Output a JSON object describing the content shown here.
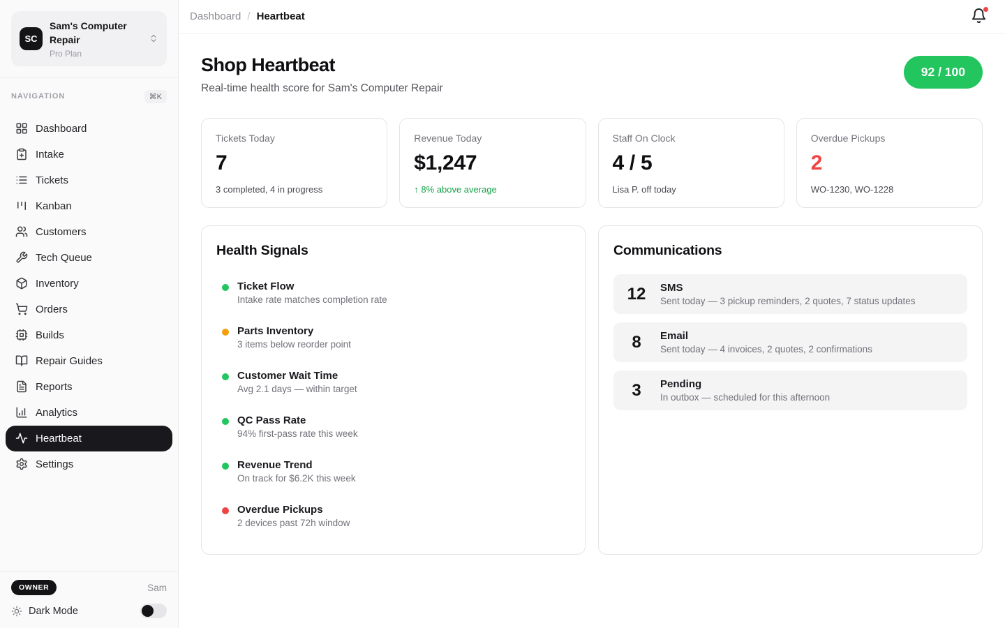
{
  "colors": {
    "green": "#22c55e",
    "green-text": "#16a34a",
    "amber": "#f59e0b",
    "red": "#ef4444",
    "border": "#e4e4e7",
    "row-bg": "#f4f4f5"
  },
  "sidebar": {
    "org": {
      "initials": "SC",
      "name": "Sam's Computer Repair",
      "plan": "Pro Plan"
    },
    "nav_label": "NAVIGATION",
    "shortcut": "⌘K",
    "items": [
      {
        "label": "Dashboard",
        "icon": "layout-grid",
        "state": ""
      },
      {
        "label": "Intake",
        "icon": "clipboard-plus",
        "state": ""
      },
      {
        "label": "Tickets",
        "icon": "list",
        "state": ""
      },
      {
        "label": "Kanban",
        "icon": "kanban",
        "state": ""
      },
      {
        "label": "Customers",
        "icon": "users",
        "state": ""
      },
      {
        "label": "Tech Queue",
        "icon": "wrench",
        "state": ""
      },
      {
        "label": "Inventory",
        "icon": "package",
        "state": ""
      },
      {
        "label": "Orders",
        "icon": "shopping-cart",
        "state": ""
      },
      {
        "label": "Builds",
        "icon": "cpu",
        "state": ""
      },
      {
        "label": "Repair Guides",
        "icon": "book-open",
        "state": ""
      },
      {
        "label": "Reports",
        "icon": "file-text",
        "state": ""
      },
      {
        "label": "Analytics",
        "icon": "bar-chart",
        "state": ""
      },
      {
        "label": "Heartbeat",
        "icon": "activity",
        "state": "active"
      },
      {
        "label": "Settings",
        "icon": "settings",
        "state": ""
      }
    ],
    "footer": {
      "owner_badge": "OWNER",
      "owner_name": "Sam",
      "dark_mode_label": "Dark Mode"
    }
  },
  "topbar": {
    "breadcrumb": {
      "parent": "Dashboard",
      "separator": "/",
      "current": "Heartbeat"
    }
  },
  "page": {
    "title": "Shop Heartbeat",
    "subtitle": "Real-time health score for Sam's Computer Repair",
    "score_badge": "92 / 100"
  },
  "stats": [
    {
      "label": "Tickets Today",
      "value": "7",
      "value_class": "",
      "sub": "3 completed, 4 in progress",
      "sub_class": ""
    },
    {
      "label": "Revenue Today",
      "value": "$1,247",
      "value_class": "",
      "sub": "↑ 8% above average",
      "sub_class": "green"
    },
    {
      "label": "Staff On Clock",
      "value": "4 / 5",
      "value_class": "",
      "sub": "Lisa P. off today",
      "sub_class": ""
    },
    {
      "label": "Overdue Pickups",
      "value": "2",
      "value_class": "red",
      "sub": "WO-1230, WO-1228",
      "sub_class": ""
    }
  ],
  "health": {
    "title": "Health Signals",
    "signals": [
      {
        "status": "green",
        "title": "Ticket Flow",
        "detail": "Intake rate matches completion rate"
      },
      {
        "status": "amber",
        "title": "Parts Inventory",
        "detail": "3 items below reorder point"
      },
      {
        "status": "green",
        "title": "Customer Wait Time",
        "detail": "Avg 2.1 days — within target"
      },
      {
        "status": "green",
        "title": "QC Pass Rate",
        "detail": "94% first-pass rate this week"
      },
      {
        "status": "green",
        "title": "Revenue Trend",
        "detail": "On track for $6.2K this week"
      },
      {
        "status": "red",
        "title": "Overdue Pickups",
        "detail": "2 devices past 72h window"
      }
    ]
  },
  "communications": {
    "title": "Communications",
    "rows": [
      {
        "count": "12",
        "label": "SMS",
        "detail": "Sent today — 3 pickup reminders, 2 quotes, 7 status updates"
      },
      {
        "count": "8",
        "label": "Email",
        "detail": "Sent today — 4 invoices, 2 quotes, 2 confirmations"
      },
      {
        "count": "3",
        "label": "Pending",
        "detail": "In outbox — scheduled for this afternoon"
      }
    ]
  }
}
